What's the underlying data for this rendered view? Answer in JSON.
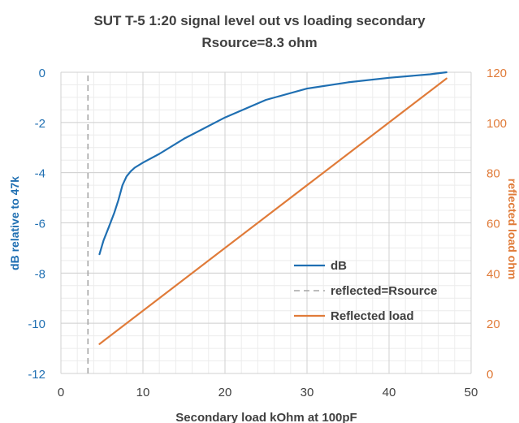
{
  "chart_data": {
    "type": "line",
    "title_lines": [
      "SUT T-5 1:20 signal level out vs loading secondary",
      "Rsource=8.3 ohm"
    ],
    "xlabel": "Secondary load kOhm at 100pF",
    "ylabel_left": "dB relative to 47k",
    "ylabel_right": "reflected load ohm",
    "xlim": [
      0,
      50
    ],
    "ylim_left": [
      -12,
      0
    ],
    "ylim_right": [
      0,
      120
    ],
    "x_ticks": [
      "0",
      "10",
      "20",
      "30",
      "40",
      "50"
    ],
    "y_left_ticks": [
      "-12",
      "-10",
      "-8",
      "-6",
      "-4",
      "-2",
      "0"
    ],
    "y_right_ticks": [
      "0",
      "20",
      "40",
      "60",
      "80",
      "100",
      "120"
    ],
    "grid": true,
    "legend_position": "center-right",
    "series": [
      {
        "name": "dB",
        "axis": "left",
        "color": "#1f6fb2",
        "style": "solid",
        "x": [
          4.7,
          5.2,
          5.8,
          6.5,
          7.0,
          7.5,
          8.0,
          8.5,
          9.0,
          10.0,
          12.0,
          15.0,
          20.0,
          25.0,
          30.0,
          35.0,
          40.0,
          45.0,
          47.0
        ],
        "y": [
          -7.25,
          -6.7,
          -6.2,
          -5.6,
          -5.1,
          -4.5,
          -4.15,
          -3.95,
          -3.8,
          -3.6,
          -3.25,
          -2.65,
          -1.8,
          -1.1,
          -0.65,
          -0.4,
          -0.22,
          -0.08,
          0.0
        ]
      },
      {
        "name": "reflected=Rsource",
        "axis": "left",
        "color": "#a6a6a6",
        "style": "dashed",
        "x": [
          3.3,
          3.3
        ],
        "y": [
          -12,
          0
        ]
      },
      {
        "name": "Reflected load",
        "axis": "right",
        "color": "#e07b39",
        "style": "solid",
        "x": [
          4.7,
          47.0
        ],
        "y": [
          11.75,
          117.5
        ]
      }
    ]
  }
}
